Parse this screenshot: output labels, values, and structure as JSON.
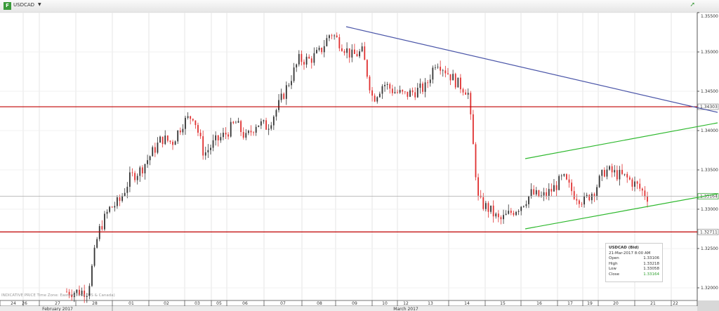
{
  "header": {
    "symbol": "USDCAD",
    "logo_text": "F",
    "caret": "▼",
    "trend_icon": "trend-up-icon"
  },
  "footnote": "INDICATIVE PRICE   Time Zone: Eastern Time (US & Canada)",
  "info": {
    "title": "USDCAD (Bid)",
    "datetime": "21-Mar-2017 8:00 AM",
    "rows": [
      {
        "label": "Open",
        "value": "1.33106"
      },
      {
        "label": "High",
        "value": "1.33218"
      },
      {
        "label": "Low",
        "value": "1.33058"
      },
      {
        "label": "Close",
        "value": "1.33164"
      }
    ]
  },
  "colors": {
    "up": "#333333",
    "down": "#e03030",
    "resistance": "#c00000",
    "trendline": "#4a55a8",
    "channel": "#2db82d",
    "close": "#2da02d"
  },
  "chart_data": {
    "type": "candlestick",
    "title": "USDCAD",
    "ylim": [
      1.319,
      1.356
    ],
    "y_ticks": [
      "1.35500",
      "1.35000",
      "1.34500",
      "1.34000",
      "1.33500",
      "1.33000",
      "1.32500",
      "1.32000"
    ],
    "y_tick_values": [
      1.355,
      1.35,
      1.345,
      1.34,
      1.335,
      1.33,
      1.325,
      1.32
    ],
    "price_markers": [
      {
        "label": "1.34303",
        "value": 1.34303,
        "kind": "resistance"
      },
      {
        "label": "1.33164",
        "value": 1.33164,
        "kind": "last"
      },
      {
        "label": "1.32711",
        "value": 1.32711,
        "kind": "support"
      }
    ],
    "x_day_labels": [
      "24",
      "26",
      "27",
      "28",
      "01",
      "02",
      "03",
      "05",
      "06",
      "07",
      "08",
      "09",
      "10",
      "12",
      "13",
      "14",
      "15",
      "16",
      "17",
      "19",
      "20",
      "21",
      "22"
    ],
    "x_month_labels": [
      "February 2017",
      "March 2017"
    ],
    "approx_closes": [
      1.3195,
      1.3195,
      1.3196,
      1.3271,
      1.33,
      1.331,
      1.334,
      1.335,
      1.337,
      1.339,
      1.3385,
      1.341,
      1.342,
      1.337,
      1.3385,
      1.3395,
      1.341,
      1.339,
      1.341,
      1.3405,
      1.343,
      1.346,
      1.349,
      1.349,
      1.35,
      1.3525,
      1.351,
      1.3495,
      1.35,
      1.344,
      1.346,
      1.345,
      1.3445,
      1.345,
      1.3455,
      1.349,
      1.3475,
      1.346,
      1.345,
      1.331,
      1.33,
      1.3285,
      1.3295,
      1.3305,
      1.332,
      1.3315,
      1.3325,
      1.334,
      1.332,
      1.331,
      1.3325,
      1.335,
      1.3345,
      1.334,
      1.333,
      1.3316
    ],
    "trendlines": [
      {
        "kind": "descending-resistance",
        "from": [
          1.3531,
          "09-Mar"
        ],
        "to": [
          1.3422,
          "22-Mar"
        ]
      },
      {
        "kind": "channel-upper",
        "from": [
          1.3365,
          "16-Mar"
        ],
        "to": [
          1.341,
          "22-Mar"
        ]
      },
      {
        "kind": "channel-lower",
        "from": [
          1.3276,
          "16-Mar"
        ],
        "to": [
          1.332,
          "22-Mar"
        ]
      }
    ]
  }
}
